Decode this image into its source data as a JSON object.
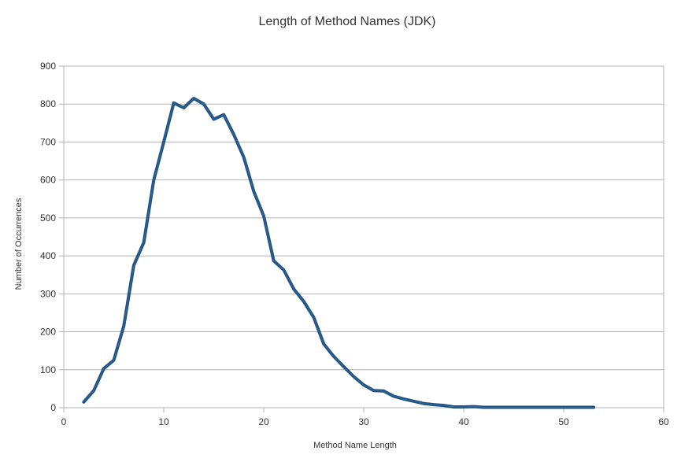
{
  "chart_data": {
    "type": "line",
    "title": "Length of Method Names (JDK)",
    "xlabel": "Method Name Length",
    "ylabel": "Number of Occurrences",
    "xlim": [
      0,
      60
    ],
    "ylim": [
      0,
      900
    ],
    "xticks": [
      0,
      10,
      20,
      30,
      40,
      50,
      60
    ],
    "yticks": [
      0,
      100,
      200,
      300,
      400,
      500,
      600,
      700,
      800,
      900
    ],
    "grid": "horizontal",
    "legend": "none",
    "colors": {
      "series": "#1f4e79",
      "series_highlight": "#2f67a3",
      "grid": "#b3b3b3",
      "axis": "#b3b3b3"
    },
    "series": [
      {
        "x": [
          2,
          3,
          4,
          5,
          6,
          7,
          8,
          9,
          10,
          11,
          12,
          13,
          14,
          15,
          16,
          17,
          18,
          19,
          20,
          21,
          22,
          23,
          24,
          25,
          26,
          27,
          28,
          29,
          30,
          31,
          32,
          33,
          34,
          35,
          36,
          37,
          38,
          39,
          40,
          41,
          42,
          43,
          44,
          45,
          46,
          47,
          48,
          49,
          50,
          51,
          52,
          53
        ],
        "values": [
          15,
          45,
          103,
          125,
          215,
          375,
          435,
          600,
          700,
          803,
          790,
          815,
          800,
          760,
          772,
          720,
          660,
          570,
          505,
          387,
          363,
          313,
          280,
          238,
          168,
          135,
          108,
          82,
          60,
          45,
          44,
          30,
          23,
          17,
          11,
          8,
          6,
          2,
          2,
          3,
          1,
          1,
          1,
          1,
          1,
          1,
          1,
          1,
          1,
          1,
          1,
          1
        ]
      }
    ]
  }
}
